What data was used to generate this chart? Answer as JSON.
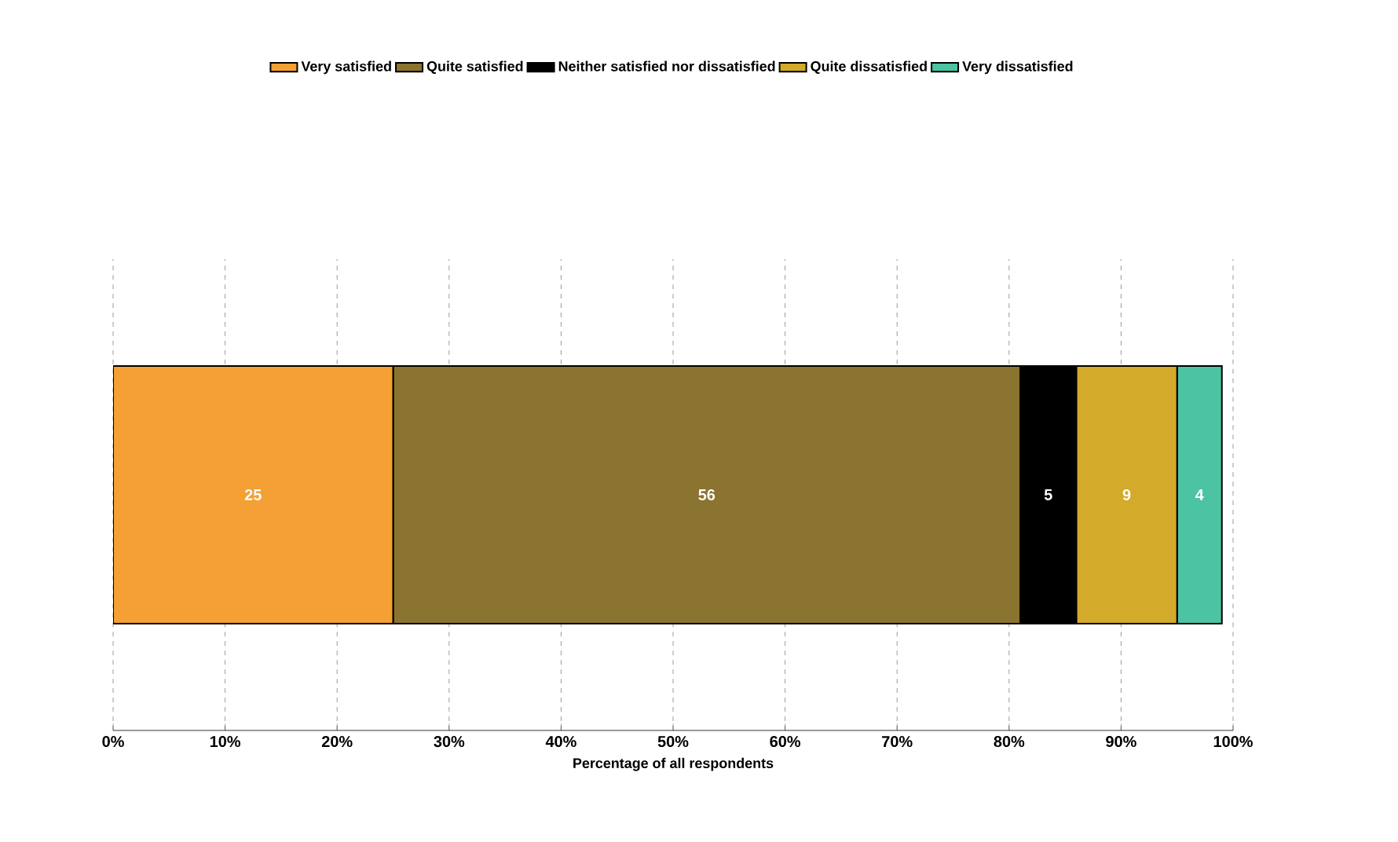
{
  "chart_data": {
    "type": "bar",
    "orientation": "horizontal",
    "stacked": true,
    "categories": [
      null
    ],
    "series": [
      {
        "name": "Very satisfied",
        "color": "#f4a034",
        "values": [
          25
        ]
      },
      {
        "name": "Quite satisfied",
        "color": "#8b7330",
        "values": [
          56
        ]
      },
      {
        "name": "Neither satisfied nor dissatisfied",
        "color": "#000000",
        "values": [
          5
        ]
      },
      {
        "name": "Quite dissatisfied",
        "color": "#d4aa2a",
        "values": [
          9
        ]
      },
      {
        "name": "Very dissatisfied",
        "color": "#4cc4a4",
        "values": [
          4
        ]
      }
    ],
    "xlabel": "Percentage of all respondents",
    "xlim": [
      0,
      100
    ],
    "xticks": [
      {
        "value": 0,
        "label": "0%"
      },
      {
        "value": 10,
        "label": "10%"
      },
      {
        "value": 20,
        "label": "20%"
      },
      {
        "value": 30,
        "label": "30%"
      },
      {
        "value": 40,
        "label": "40%"
      },
      {
        "value": 50,
        "label": "50%"
      },
      {
        "value": 60,
        "label": "60%"
      },
      {
        "value": 70,
        "label": "70%"
      },
      {
        "value": 80,
        "label": "80%"
      },
      {
        "value": 90,
        "label": "90%"
      },
      {
        "value": 100,
        "label": "100%"
      }
    ],
    "grid": "x",
    "legend": "top",
    "data_labels": true
  }
}
